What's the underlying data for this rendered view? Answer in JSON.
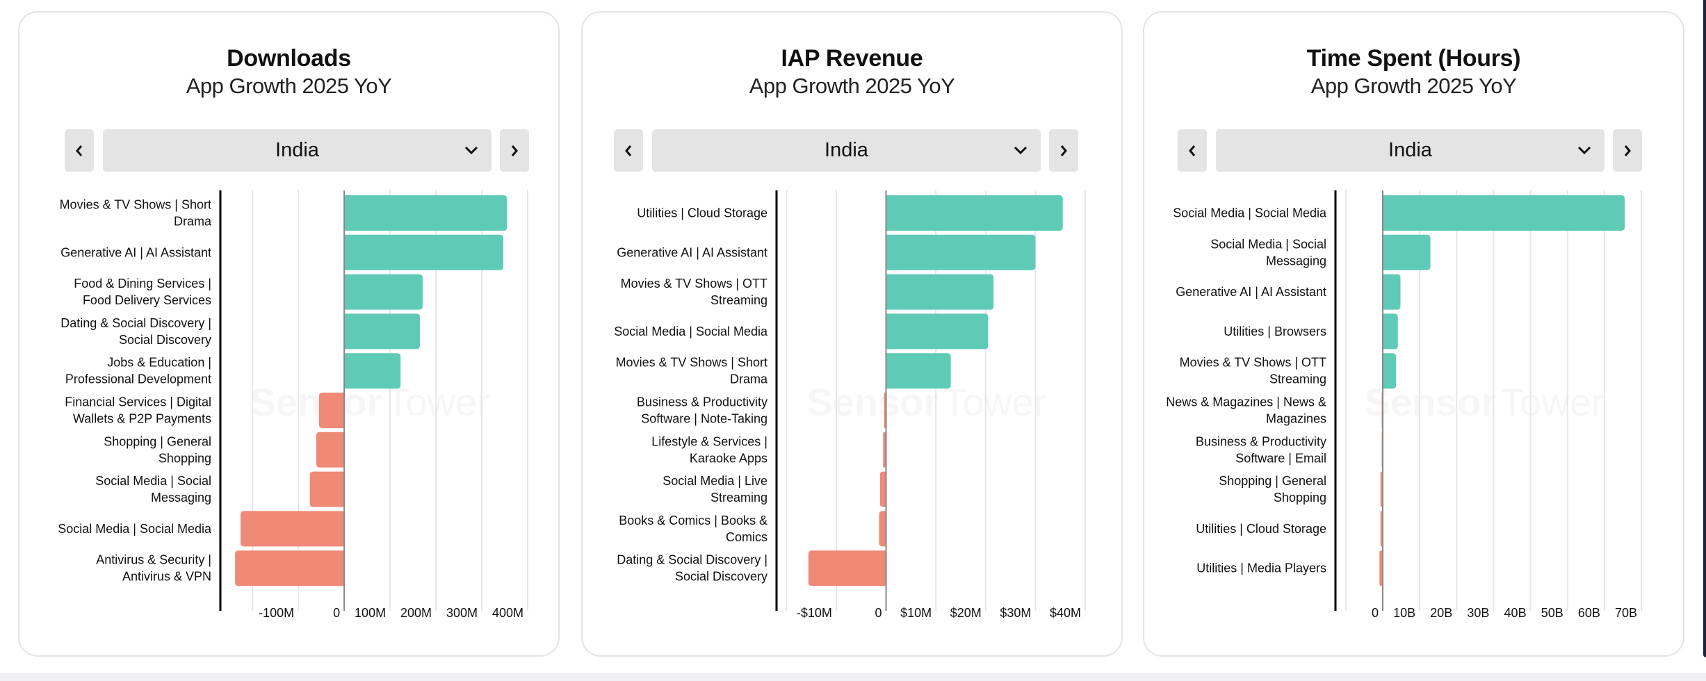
{
  "theme": {
    "positive_color": "#5fcbb7",
    "negative_color": "#ee8a76",
    "gridline_color": "#e6e6e6",
    "axis_color": "#000000",
    "zero_line_color": "#888888"
  },
  "watermark": {
    "brand_bold": "Sensor",
    "brand_light": "Tower"
  },
  "cards": [
    {
      "title": "Downloads",
      "subtitle": "App Growth 2025 YoY",
      "selector": {
        "value": "India",
        "prev_icon": "chevron-left-icon",
        "next_icon": "chevron-right-icon",
        "dropdown_icon": "chevron-down-icon"
      }
    },
    {
      "title": "IAP Revenue",
      "subtitle": "App Growth 2025 YoY",
      "selector": {
        "value": "India",
        "prev_icon": "chevron-left-icon",
        "next_icon": "chevron-right-icon",
        "dropdown_icon": "chevron-down-icon"
      }
    },
    {
      "title": "Time Spent (Hours)",
      "subtitle": "App Growth 2025 YoY",
      "selector": {
        "value": "India",
        "prev_icon": "chevron-left-icon",
        "next_icon": "chevron-right-icon",
        "dropdown_icon": "chevron-down-icon"
      }
    }
  ],
  "chart_data": [
    {
      "type": "bar",
      "orientation": "horizontal",
      "title": "Downloads",
      "subtitle": "App Growth 2025 YoY",
      "xlabel": "",
      "ylabel": "",
      "unit": "downloads",
      "xlim": [
        -270000000,
        400000000
      ],
      "grid": true,
      "ticks": [
        {
          "value": -200000000,
          "label": ""
        },
        {
          "value": -100000000,
          "label": "-100M"
        },
        {
          "value": 0,
          "label": "0"
        },
        {
          "value": 100000000,
          "label": "100M"
        },
        {
          "value": 200000000,
          "label": "200M"
        },
        {
          "value": 300000000,
          "label": "300M"
        },
        {
          "value": 400000000,
          "label": "400M"
        }
      ],
      "categories": [
        [
          "Movies & TV Shows | Short",
          "Drama"
        ],
        [
          "Generative AI | AI Assistant"
        ],
        [
          "Food & Dining Services |",
          "Food Delivery Services"
        ],
        [
          "Dating & Social Discovery |",
          "Social Discovery"
        ],
        [
          "Jobs & Education |",
          "Professional Development"
        ],
        [
          "Financial Services | Digital",
          "Wallets & P2P Payments"
        ],
        [
          "Shopping | General",
          "Shopping"
        ],
        [
          "Social Media | Social",
          "Messaging"
        ],
        [
          "Social Media | Social Media"
        ],
        [
          "Antivirus & Security |",
          "Antivirus & VPN"
        ]
      ],
      "values": [
        355000000,
        347000000,
        171000000,
        165000000,
        123000000,
        -55000000,
        -61000000,
        -75000000,
        -226000000,
        -238000000
      ]
    },
    {
      "type": "bar",
      "orientation": "horizontal",
      "title": "IAP Revenue",
      "subtitle": "App Growth 2025 YoY",
      "xlabel": "",
      "ylabel": "",
      "unit": "USD",
      "xlim": [
        -22000000,
        40000000
      ],
      "grid": true,
      "ticks": [
        {
          "value": -20000000,
          "label": ""
        },
        {
          "value": -10000000,
          "label": "-$10M"
        },
        {
          "value": 0,
          "label": "0"
        },
        {
          "value": 10000000,
          "label": "$10M"
        },
        {
          "value": 20000000,
          "label": "$20M"
        },
        {
          "value": 30000000,
          "label": "$30M"
        },
        {
          "value": 40000000,
          "label": "$40M"
        }
      ],
      "categories": [
        [
          "Utilities | Cloud Storage"
        ],
        [
          "Generative AI | AI Assistant"
        ],
        [
          "Movies & TV Shows | OTT",
          "Streaming"
        ],
        [
          "Social Media | Social Media"
        ],
        [
          "Movies & TV Shows | Short",
          "Drama"
        ],
        [
          "Business & Productivity",
          "Software | Note-Taking"
        ],
        [
          "Lifestyle & Services |",
          "Karaoke Apps"
        ],
        [
          "Social Media | Live",
          "Streaming"
        ],
        [
          "Books & Comics | Books &",
          "Comics"
        ],
        [
          "Dating & Social Discovery |",
          "Social Discovery"
        ]
      ],
      "values": [
        35500000,
        30000000,
        21600000,
        20500000,
        13000000,
        -400000,
        -600000,
        -1200000,
        -1400000,
        -15600000
      ]
    },
    {
      "type": "bar",
      "orientation": "horizontal",
      "title": "Time Spent (Hours)",
      "subtitle": "App Growth 2025 YoY",
      "xlabel": "",
      "ylabel": "",
      "unit": "hours",
      "xlim": [
        -12800000000,
        70000000000
      ],
      "grid": true,
      "ticks": [
        {
          "value": -10000000000,
          "label": ""
        },
        {
          "value": 0,
          "label": "0"
        },
        {
          "value": 10000000000,
          "label": "10B"
        },
        {
          "value": 20000000000,
          "label": "20B"
        },
        {
          "value": 30000000000,
          "label": "30B"
        },
        {
          "value": 40000000000,
          "label": "40B"
        },
        {
          "value": 50000000000,
          "label": "50B"
        },
        {
          "value": 60000000000,
          "label": "60B"
        },
        {
          "value": 70000000000,
          "label": "70B"
        }
      ],
      "categories": [
        [
          "Social Media | Social Media"
        ],
        [
          "Social Media | Social",
          "Messaging"
        ],
        [
          "Generative AI | AI Assistant"
        ],
        [
          "Utilities | Browsers"
        ],
        [
          "Movies & TV Shows | OTT",
          "Streaming"
        ],
        [
          "News & Magazines | News &",
          "Magazines"
        ],
        [
          "Business & Productivity",
          "Software | Email"
        ],
        [
          "Shopping | General",
          "Shopping"
        ],
        [
          "Utilities | Cloud Storage"
        ],
        [
          "Utilities | Media Players"
        ]
      ],
      "values": [
        65500000000,
        12900000000,
        4800000000,
        4100000000,
        3600000000,
        -200000000,
        -250000000,
        -600000000,
        -600000000,
        -900000000
      ]
    }
  ]
}
